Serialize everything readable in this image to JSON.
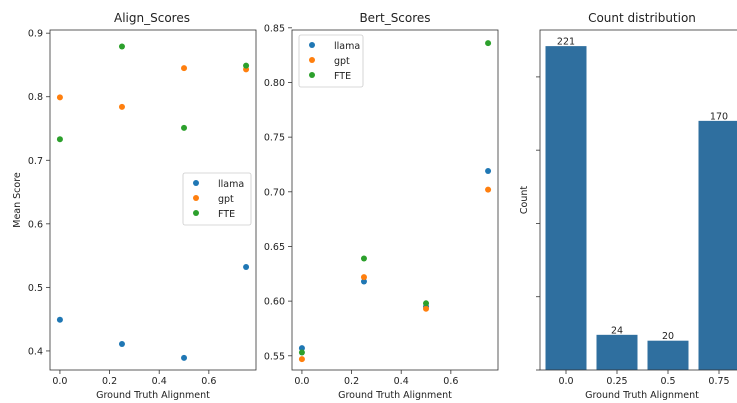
{
  "chart_data": [
    {
      "type": "scatter",
      "title": "Align_Scores",
      "xlabel": "Ground Truth Alignment",
      "ylabel": "Mean Score",
      "xlim": [
        -0.04,
        0.79
      ],
      "ylim": [
        0.37,
        0.905
      ],
      "xticks": [
        "0.0",
        "0.2",
        "0.4",
        "0.6"
      ],
      "yticks": [
        "0.4",
        "0.5",
        "0.6",
        "0.7",
        "0.8",
        "0.9"
      ],
      "legend": "center-right",
      "series": [
        {
          "name": "llama",
          "color": "#1f77b4",
          "points": [
            [
              0.0,
              0.449
            ],
            [
              0.25,
              0.411
            ],
            [
              0.5,
              0.389
            ],
            [
              0.75,
              0.532
            ]
          ]
        },
        {
          "name": "gpt",
          "color": "#ff7f0e",
          "points": [
            [
              0.0,
              0.799
            ],
            [
              0.25,
              0.784
            ],
            [
              0.5,
              0.845
            ],
            [
              0.75,
              0.843
            ]
          ]
        },
        {
          "name": "FTE",
          "color": "#2ca02c",
          "points": [
            [
              0.0,
              0.733
            ],
            [
              0.25,
              0.879
            ],
            [
              0.5,
              0.751
            ],
            [
              0.75,
              0.849
            ]
          ]
        }
      ]
    },
    {
      "type": "scatter",
      "title": "Bert_Scores",
      "xlabel": "Ground Truth Alignment",
      "ylabel": "",
      "xlim": [
        -0.04,
        0.79
      ],
      "ylim": [
        0.537,
        0.848
      ],
      "xticks": [
        "0.0",
        "0.2",
        "0.4",
        "0.6"
      ],
      "yticks": [
        "0.55",
        "0.60",
        "0.65",
        "0.70",
        "0.75",
        "0.80",
        "0.85"
      ],
      "legend": "top-left",
      "series": [
        {
          "name": "llama",
          "color": "#1f77b4",
          "points": [
            [
              0.0,
              0.557
            ],
            [
              0.25,
              0.618
            ],
            [
              0.5,
              0.595
            ],
            [
              0.75,
              0.719
            ]
          ]
        },
        {
          "name": "gpt",
          "color": "#ff7f0e",
          "points": [
            [
              0.0,
              0.547
            ],
            [
              0.25,
              0.622
            ],
            [
              0.5,
              0.593
            ],
            [
              0.75,
              0.702
            ]
          ]
        },
        {
          "name": "FTE",
          "color": "#2ca02c",
          "points": [
            [
              0.0,
              0.553
            ],
            [
              0.25,
              0.639
            ],
            [
              0.5,
              0.598
            ],
            [
              0.75,
              0.836
            ]
          ]
        }
      ]
    },
    {
      "type": "bar",
      "title": "Count distribution",
      "xlabel": "Ground Truth Alignment",
      "ylabel": "Count",
      "categories": [
        "0.0",
        "0.25",
        "0.5",
        "0.75"
      ],
      "values": [
        221,
        24,
        20,
        170
      ],
      "value_labels": [
        "221",
        "24",
        "20",
        "170"
      ],
      "ylim": [
        0,
        232
      ],
      "color": "#2f6f9f"
    }
  ]
}
